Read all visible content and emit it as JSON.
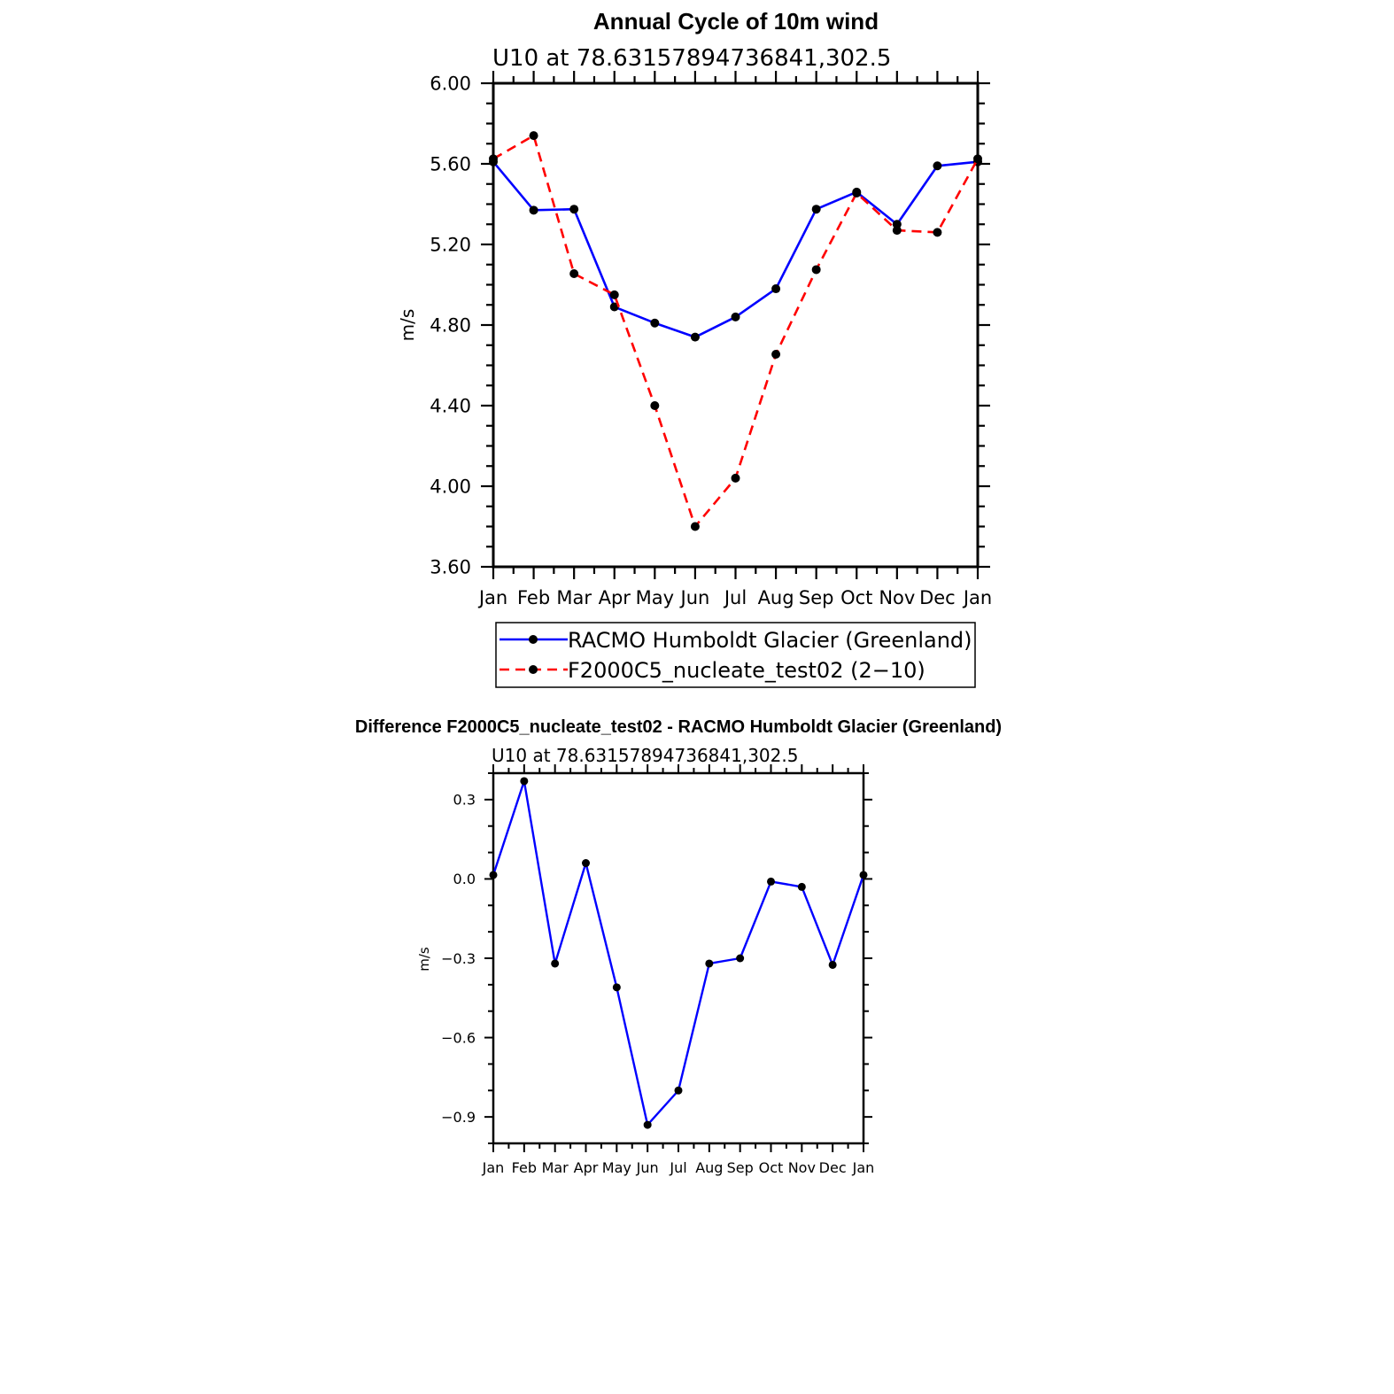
{
  "chart_data": [
    {
      "type": "line",
      "title": "Annual Cycle of 10m wind",
      "subtitle": "U10 at 78.63157894736841,302.5",
      "ylabel": "m/s",
      "xlabel": "",
      "categories": [
        "Jan",
        "Feb",
        "Mar",
        "Apr",
        "May",
        "Jun",
        "Jul",
        "Aug",
        "Sep",
        "Oct",
        "Nov",
        "Dec",
        "Jan"
      ],
      "ylim": [
        3.6,
        6.0
      ],
      "yticks": [
        "3.60",
        "4.00",
        "4.40",
        "4.80",
        "5.20",
        "5.60",
        "6.00"
      ],
      "grid": false,
      "legend_position": "bottom",
      "series": [
        {
          "name": "RACMO Humboldt Glacier (Greenland)",
          "color": "#0000ff",
          "style": "solid",
          "values": [
            5.61,
            5.37,
            5.375,
            4.89,
            4.81,
            4.74,
            4.84,
            4.98,
            5.375,
            5.46,
            5.3,
            5.59,
            5.61
          ]
        },
        {
          "name": "F2000C5_nucleate_test02 (2−10)",
          "color": "#ff0000",
          "style": "dashed",
          "values": [
            5.625,
            5.74,
            5.055,
            4.95,
            4.4,
            3.8,
            4.04,
            4.655,
            5.075,
            5.455,
            5.27,
            5.26,
            5.625
          ]
        }
      ]
    },
    {
      "type": "line",
      "title": "Difference F2000C5_nucleate_test02 - RACMO Humboldt Glacier (Greenland)",
      "subtitle": "U10 at 78.63157894736841,302.5",
      "ylabel": "m/s",
      "xlabel": "",
      "categories": [
        "Jan",
        "Feb",
        "Mar",
        "Apr",
        "May",
        "Jun",
        "Jul",
        "Aug",
        "Sep",
        "Oct",
        "Nov",
        "Dec",
        "Jan"
      ],
      "ylim": [
        -1.0,
        0.4
      ],
      "yticks": [
        "−0.9",
        "−0.6",
        "−0.3",
        "0.0",
        "0.3"
      ],
      "grid": false,
      "series": [
        {
          "color": "#0000ff",
          "style": "solid",
          "values": [
            0.015,
            0.37,
            -0.32,
            0.06,
            -0.41,
            -0.93,
            -0.8,
            -0.32,
            -0.3,
            -0.01,
            -0.03,
            -0.325,
            0.015
          ]
        }
      ]
    }
  ]
}
